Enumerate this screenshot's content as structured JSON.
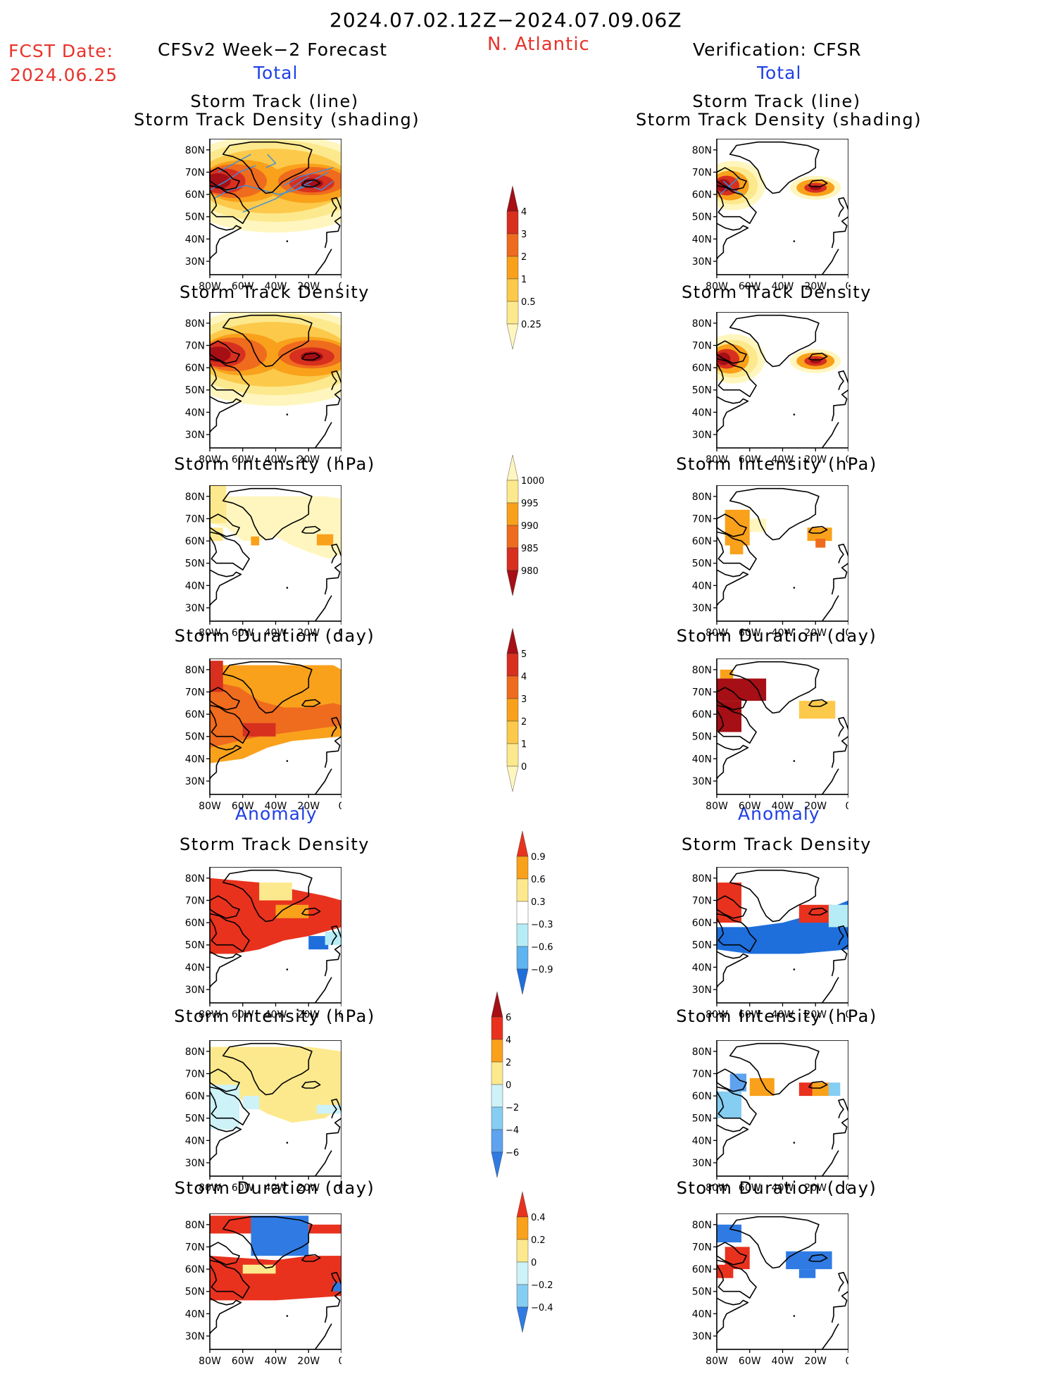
{
  "header": {
    "period": "2024.07.02.12Z−2024.07.09.06Z",
    "region": "N. Atlantic",
    "fcst_label": "FCST Date:",
    "fcst_date": "2024.06.25",
    "left_title": "CFSv2 Week−2 Forecast",
    "left_sub": "Total",
    "right_title": "Verification: CFSR",
    "right_sub": "Total"
  },
  "section_anomaly": "Anomaly",
  "panel_titles": {
    "track": [
      "Storm Track (line)",
      "Storm Track Density (shading)"
    ],
    "density": "Storm Track Density",
    "intensity": "Storm Intensity (hPa)",
    "duration": "Storm Duration (day)"
  },
  "axes": {
    "lat_labels": [
      "80N",
      "70N",
      "60N",
      "50N",
      "40N",
      "30N"
    ],
    "lon_labels": [
      "80W",
      "60W",
      "40W",
      "20W",
      "0"
    ]
  },
  "colorbars": {
    "density": {
      "labels": [
        "4",
        "3",
        "2",
        "1",
        "0.5",
        "0.25"
      ],
      "colors": [
        "#a50f15",
        "#d7301f",
        "#ef6b1e",
        "#f9a11b",
        "#fcc94a",
        "#fde98d",
        "#fff6bf"
      ]
    },
    "intensity": {
      "labels": [
        "1000",
        "995",
        "990",
        "985",
        "980"
      ],
      "colors": [
        "#fff6bf",
        "#fde98d",
        "#f9a11b",
        "#ef6b1e",
        "#d7301f",
        "#a50f15"
      ]
    },
    "duration": {
      "labels": [
        "5",
        "4",
        "3",
        "2",
        "1",
        "0"
      ],
      "colors": [
        "#a50f15",
        "#d7301f",
        "#ef6b1e",
        "#f9a11b",
        "#fcc94a",
        "#fde98d",
        "#fff6bf"
      ]
    },
    "density_anom": {
      "labels": [
        "0.9",
        "0.6",
        "0.3",
        "−0.3",
        "−0.6",
        "−0.9"
      ],
      "colors": [
        "#e8321e",
        "#f9a11b",
        "#fde98d",
        "#ffffff",
        "#b6ecf5",
        "#5fb3ef",
        "#1e6fdc"
      ]
    },
    "intensity_anom": {
      "labels": [
        "6",
        "4",
        "2",
        "0",
        "−2",
        "−4",
        "−6"
      ],
      "colors": [
        "#a50f15",
        "#e8321e",
        "#f9a11b",
        "#fde98d",
        "#cdf2f8",
        "#86cdf2",
        "#5fa3ef",
        "#2f7be3"
      ]
    },
    "duration_anom": {
      "labels": [
        "0.4",
        "0.2",
        "0",
        "−0.2",
        "−0.4"
      ],
      "colors": [
        "#e8321e",
        "#f9a11b",
        "#fde98d",
        "#cdf2f8",
        "#86cdf2",
        "#2f7be3"
      ]
    }
  },
  "colors": {
    "title_red": "#e8322a",
    "title_blue": "#1f3fe6",
    "track_line": "#3b8fe0"
  }
}
